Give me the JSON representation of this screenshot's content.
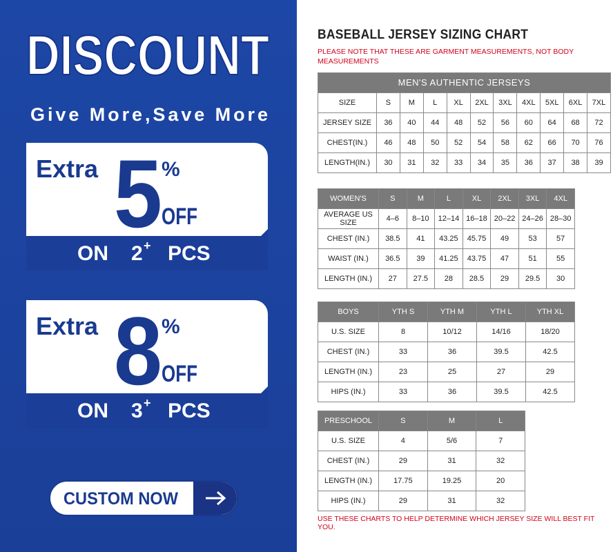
{
  "promo": {
    "headline": "DISCOUNT",
    "tagline": "Give More,Save More",
    "offers": [
      {
        "extra": "Extra",
        "number": "5",
        "percent": "%",
        "off": "OFF",
        "on": "ON",
        "qty": "2",
        "sup": "+",
        "pcs": "PCS"
      },
      {
        "extra": "Extra",
        "number": "8",
        "percent": "%",
        "off": "OFF",
        "on": "ON",
        "qty": "3",
        "sup": "+",
        "pcs": "PCS"
      }
    ],
    "button": "CUSTOM NOW"
  },
  "chart": {
    "title": "BASEBALL JERSEY SIZING CHART",
    "note": "PLEASE NOTE THAT THESE ARE GARMENT MEASUREMENTS, NOT BODY MEASUREMENTS",
    "tables": [
      {
        "title": "MEN'S AUTHENTIC JERSEYS",
        "header": [
          "SIZE",
          "S",
          "M",
          "L",
          "XL",
          "2XL",
          "3XL",
          "4XL",
          "5XL",
          "6XL",
          "7XL"
        ],
        "rows": [
          [
            "JERSEY SIZE",
            "36",
            "40",
            "44",
            "48",
            "52",
            "56",
            "60",
            "64",
            "68",
            "72"
          ],
          [
            "CHEST(IN.)",
            "46",
            "48",
            "50",
            "52",
            "54",
            "58",
            "62",
            "66",
            "70",
            "76"
          ],
          [
            "LENGTH(IN.)",
            "30",
            "31",
            "32",
            "33",
            "34",
            "35",
            "36",
            "37",
            "38",
            "39"
          ]
        ]
      },
      {
        "header": [
          "WOMEN'S",
          "S",
          "M",
          "L",
          "XL",
          "2XL",
          "3XL",
          "4XL"
        ],
        "rows": [
          [
            "AVERAGE US SIZE",
            "4–6",
            "8–10",
            "12–14",
            "16–18",
            "20–22",
            "24–26",
            "28–30"
          ],
          [
            "CHEST (IN.)",
            "38.5",
            "41",
            "43.25",
            "45.75",
            "49",
            "53",
            "57"
          ],
          [
            "WAIST (IN.)",
            "36.5",
            "39",
            "41.25",
            "43.75",
            "47",
            "51",
            "55"
          ],
          [
            "LENGTH (IN.)",
            "27",
            "27.5",
            "28",
            "28.5",
            "29",
            "29.5",
            "30"
          ]
        ]
      },
      {
        "header": [
          "BOYS",
          "YTH S",
          "YTH M",
          "YTH L",
          "YTH XL"
        ],
        "rows": [
          [
            "U.S. SIZE",
            "8",
            "10/12",
            "14/16",
            "18/20"
          ],
          [
            "CHEST (IN.)",
            "33",
            "36",
            "39.5",
            "42.5"
          ],
          [
            "LENGTH (IN.)",
            "23",
            "25",
            "27",
            "29"
          ],
          [
            "HIPS (IN.)",
            "33",
            "36",
            "39.5",
            "42.5"
          ]
        ]
      },
      {
        "header": [
          "PRESCHOOL",
          "S",
          "M",
          "L"
        ],
        "rows": [
          [
            "U.S. SIZE",
            "4",
            "5/6",
            "7"
          ],
          [
            "CHEST (IN.)",
            "29",
            "31",
            "32"
          ],
          [
            "LENGTH (IN.)",
            "17.75",
            "19.25",
            "20"
          ],
          [
            "HIPS (IN.)",
            "29",
            "31",
            "32"
          ]
        ]
      }
    ],
    "footer": "USE THESE CHARTS TO HELP DETERMINE WHICH JERSEY SIZE WILL BEST FIT YOU."
  }
}
